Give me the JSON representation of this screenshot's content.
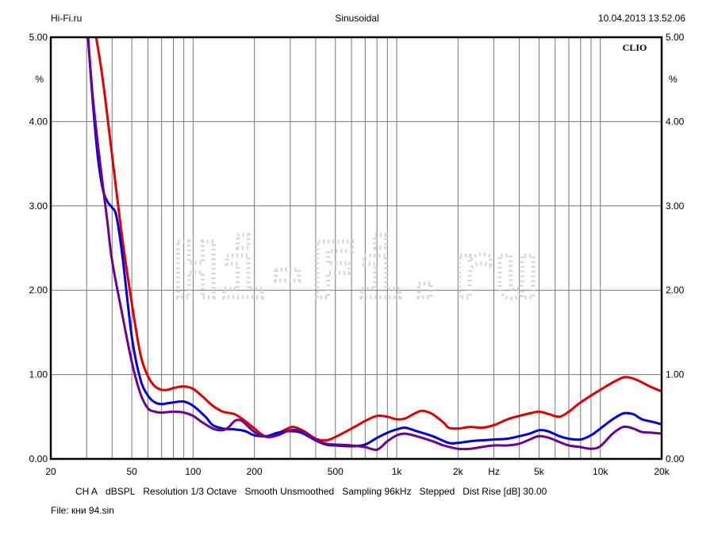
{
  "header": {
    "left": "Hi-Fi.ru",
    "center": "Sinusoidal",
    "right": "10.04.2013 13.52.06"
  },
  "brand_label": "CLIO",
  "watermark": "Hi-Fi.ru",
  "footer": {
    "channel": "CH A",
    "unit": "dBSPL",
    "resolution": "Resolution 1/3 Octave",
    "smooth": "Smooth Unsmoothed",
    "sampling": "Sampling 96kHz",
    "mode": "Stepped",
    "dist_rise": "Dist Rise [dB] 30.00",
    "file": "File: кни 94.sin"
  },
  "chart_data": {
    "type": "line",
    "x_scale": "log",
    "xlim": [
      20,
      20000
    ],
    "ylim": [
      0,
      5
    ],
    "x_unit_label": "Hz",
    "y_unit_label": "%",
    "grid": true,
    "x_tick_labels": [
      {
        "v": 20,
        "label": "20"
      },
      {
        "v": 50,
        "label": "50"
      },
      {
        "v": 100,
        "label": "100"
      },
      {
        "v": 200,
        "label": "200"
      },
      {
        "v": 500,
        "label": "500"
      },
      {
        "v": 1000,
        "label": "1k"
      },
      {
        "v": 2000,
        "label": "2k"
      },
      {
        "v": 5000,
        "label": "5k"
      },
      {
        "v": 10000,
        "label": "10k"
      },
      {
        "v": 20000,
        "label": "20k"
      }
    ],
    "y_tick_labels": [
      "0.00",
      "1.00",
      "2.00",
      "3.00",
      "4.00",
      "5.00"
    ],
    "series": [
      {
        "color": "#e00000",
        "points": [
          [
            33.4,
            5.0
          ],
          [
            36,
            4.5
          ],
          [
            40,
            3.6
          ],
          [
            45,
            2.6
          ],
          [
            50,
            1.85
          ],
          [
            55,
            1.25
          ],
          [
            60,
            0.98
          ],
          [
            65,
            0.86
          ],
          [
            70,
            0.82
          ],
          [
            75,
            0.82
          ],
          [
            80,
            0.84
          ],
          [
            90,
            0.86
          ],
          [
            100,
            0.83
          ],
          [
            110,
            0.75
          ],
          [
            125,
            0.63
          ],
          [
            140,
            0.56
          ],
          [
            160,
            0.53
          ],
          [
            180,
            0.45
          ],
          [
            200,
            0.36
          ],
          [
            225,
            0.27
          ],
          [
            250,
            0.28
          ],
          [
            280,
            0.34
          ],
          [
            310,
            0.38
          ],
          [
            350,
            0.33
          ],
          [
            400,
            0.24
          ],
          [
            450,
            0.22
          ],
          [
            500,
            0.26
          ],
          [
            600,
            0.36
          ],
          [
            700,
            0.45
          ],
          [
            800,
            0.51
          ],
          [
            900,
            0.5
          ],
          [
            1000,
            0.47
          ],
          [
            1100,
            0.48
          ],
          [
            1250,
            0.55
          ],
          [
            1350,
            0.57
          ],
          [
            1500,
            0.53
          ],
          [
            1700,
            0.43
          ],
          [
            1800,
            0.37
          ],
          [
            2000,
            0.36
          ],
          [
            2300,
            0.38
          ],
          [
            2600,
            0.37
          ],
          [
            3000,
            0.4
          ],
          [
            3500,
            0.47
          ],
          [
            4000,
            0.51
          ],
          [
            4500,
            0.54
          ],
          [
            5000,
            0.56
          ],
          [
            5600,
            0.53
          ],
          [
            6300,
            0.5
          ],
          [
            7000,
            0.56
          ],
          [
            8000,
            0.67
          ],
          [
            10000,
            0.82
          ],
          [
            12000,
            0.93
          ],
          [
            13300,
            0.97
          ],
          [
            15000,
            0.94
          ],
          [
            17500,
            0.86
          ],
          [
            20000,
            0.8
          ]
        ]
      },
      {
        "color": "#0000dd",
        "points": [
          [
            30.5,
            5.0
          ],
          [
            32,
            4.3
          ],
          [
            34,
            3.6
          ],
          [
            36,
            3.2
          ],
          [
            38,
            3.05
          ],
          [
            40,
            2.98
          ],
          [
            42,
            2.88
          ],
          [
            45,
            2.4
          ],
          [
            50,
            1.45
          ],
          [
            55,
            0.95
          ],
          [
            60,
            0.75
          ],
          [
            65,
            0.67
          ],
          [
            70,
            0.65
          ],
          [
            75,
            0.66
          ],
          [
            80,
            0.67
          ],
          [
            90,
            0.68
          ],
          [
            100,
            0.63
          ],
          [
            115,
            0.5
          ],
          [
            125,
            0.4
          ],
          [
            140,
            0.36
          ],
          [
            160,
            0.35
          ],
          [
            180,
            0.33
          ],
          [
            200,
            0.28
          ],
          [
            230,
            0.27
          ],
          [
            260,
            0.31
          ],
          [
            300,
            0.33
          ],
          [
            340,
            0.31
          ],
          [
            400,
            0.22
          ],
          [
            450,
            0.17
          ],
          [
            500,
            0.16
          ],
          [
            600,
            0.15
          ],
          [
            700,
            0.17
          ],
          [
            800,
            0.25
          ],
          [
            900,
            0.31
          ],
          [
            1000,
            0.35
          ],
          [
            1100,
            0.37
          ],
          [
            1250,
            0.33
          ],
          [
            1500,
            0.27
          ],
          [
            1800,
            0.19
          ],
          [
            2000,
            0.19
          ],
          [
            2300,
            0.21
          ],
          [
            2600,
            0.22
          ],
          [
            3000,
            0.23
          ],
          [
            3500,
            0.24
          ],
          [
            4000,
            0.27
          ],
          [
            4500,
            0.3
          ],
          [
            5000,
            0.34
          ],
          [
            5500,
            0.33
          ],
          [
            6300,
            0.27
          ],
          [
            7000,
            0.24
          ],
          [
            8000,
            0.23
          ],
          [
            9000,
            0.28
          ],
          [
            10000,
            0.36
          ],
          [
            11500,
            0.47
          ],
          [
            13000,
            0.54
          ],
          [
            14500,
            0.53
          ],
          [
            16000,
            0.47
          ],
          [
            18000,
            0.44
          ],
          [
            20000,
            0.41
          ]
        ]
      },
      {
        "color": "#700090",
        "points": [
          [
            30.5,
            5.0
          ],
          [
            32,
            4.35
          ],
          [
            34,
            3.75
          ],
          [
            36,
            3.25
          ],
          [
            38,
            2.8
          ],
          [
            40,
            2.35
          ],
          [
            45,
            1.7
          ],
          [
            50,
            1.15
          ],
          [
            55,
            0.78
          ],
          [
            60,
            0.6
          ],
          [
            65,
            0.56
          ],
          [
            70,
            0.55
          ],
          [
            80,
            0.56
          ],
          [
            90,
            0.55
          ],
          [
            100,
            0.51
          ],
          [
            110,
            0.44
          ],
          [
            125,
            0.36
          ],
          [
            140,
            0.34
          ],
          [
            150,
            0.38
          ],
          [
            160,
            0.45
          ],
          [
            170,
            0.46
          ],
          [
            180,
            0.42
          ],
          [
            200,
            0.32
          ],
          [
            230,
            0.26
          ],
          [
            260,
            0.28
          ],
          [
            300,
            0.34
          ],
          [
            340,
            0.33
          ],
          [
            400,
            0.23
          ],
          [
            450,
            0.18
          ],
          [
            500,
            0.17
          ],
          [
            600,
            0.16
          ],
          [
            700,
            0.14
          ],
          [
            800,
            0.11
          ],
          [
            900,
            0.21
          ],
          [
            1000,
            0.28
          ],
          [
            1100,
            0.3
          ],
          [
            1250,
            0.27
          ],
          [
            1500,
            0.21
          ],
          [
            1700,
            0.16
          ],
          [
            2000,
            0.12
          ],
          [
            2300,
            0.12
          ],
          [
            2600,
            0.14
          ],
          [
            3000,
            0.16
          ],
          [
            3500,
            0.16
          ],
          [
            4000,
            0.18
          ],
          [
            4500,
            0.23
          ],
          [
            5000,
            0.27
          ],
          [
            5600,
            0.25
          ],
          [
            6300,
            0.2
          ],
          [
            7000,
            0.16
          ],
          [
            8000,
            0.14
          ],
          [
            9000,
            0.12
          ],
          [
            10000,
            0.15
          ],
          [
            11500,
            0.3
          ],
          [
            13000,
            0.38
          ],
          [
            14500,
            0.36
          ],
          [
            16000,
            0.32
          ],
          [
            18000,
            0.31
          ],
          [
            20000,
            0.3
          ]
        ]
      }
    ]
  }
}
